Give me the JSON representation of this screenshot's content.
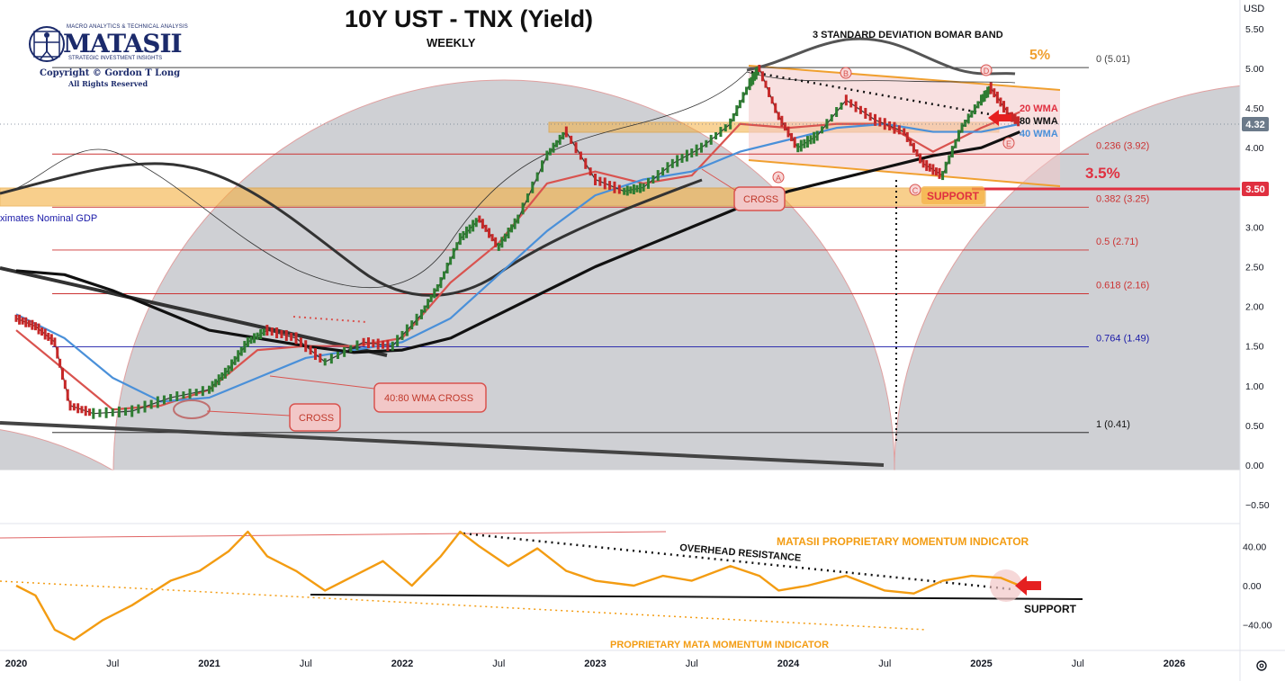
{
  "header": {
    "title": "10Y UST - TNX (Yield)",
    "subtitle": "WEEKLY",
    "currency_label": "USD"
  },
  "logo": {
    "top_line": "MACRO ANALYTICS & TECHNICAL ANALYSIS",
    "name": "MATASII",
    "tagline": "STRATEGIC INVESTMENT INSIGHTS",
    "copyright": "Copyright © Gordon T Long",
    "rights": "All Rights Reserved"
  },
  "chart_data": [
    {
      "type": "line",
      "name": "price-panel",
      "x_ticks": [
        "2020",
        "Jul",
        "2021",
        "Jul",
        "2022",
        "Jul",
        "2023",
        "Jul",
        "2024",
        "Jul",
        "2025",
        "Jul",
        "2026"
      ],
      "ylim": [
        -0.7,
        5.7
      ],
      "y_ticks": [
        -0.5,
        0,
        0.5,
        1,
        1.5,
        2,
        2.5,
        3,
        3.5,
        4,
        4.5,
        5,
        5.5
      ],
      "price_labels": {
        "last": "4.32",
        "level": "3.50"
      },
      "fib_levels": [
        {
          "label": "0 (5.01)",
          "value": 5.01,
          "color": "#444444"
        },
        {
          "label": "0.236 (3.92)",
          "value": 3.92,
          "color": "#cc3333"
        },
        {
          "label": "0.382 (3.25)",
          "value": 3.25,
          "color": "#cc3333"
        },
        {
          "label": "0.5 (2.71)",
          "value": 2.71,
          "color": "#cc3333"
        },
        {
          "label": "0.618 (2.16)",
          "value": 2.16,
          "color": "#cc3333"
        },
        {
          "label": "0.764 (1.49)",
          "value": 1.49,
          "color": "#1a1aa8"
        },
        {
          "label": "1 (0.41)",
          "value": 0.41,
          "color": "#111111"
        }
      ],
      "series": [
        {
          "name": "20 WMA",
          "color": "#d9534f",
          "x": [
            2020.0,
            2020.25,
            2020.5,
            2020.75,
            2021.0,
            2021.25,
            2021.5,
            2021.75,
            2022.0,
            2022.25,
            2022.5,
            2022.75,
            2023.0,
            2023.25,
            2023.5,
            2023.75,
            2024.0,
            2024.25,
            2024.5,
            2024.75,
            2025.0,
            2025.2
          ],
          "y": [
            1.7,
            1.2,
            0.7,
            0.75,
            0.95,
            1.45,
            1.5,
            1.5,
            1.6,
            2.3,
            2.8,
            3.55,
            3.7,
            3.55,
            3.65,
            4.3,
            4.25,
            4.3,
            4.3,
            3.95,
            4.25,
            4.45
          ]
        },
        {
          "name": "40 WMA",
          "color": "#4a90d9",
          "x": [
            2020.0,
            2020.25,
            2020.5,
            2020.75,
            2021.0,
            2021.25,
            2021.5,
            2021.75,
            2022.0,
            2022.25,
            2022.5,
            2022.75,
            2023.0,
            2023.25,
            2023.5,
            2023.75,
            2024.0,
            2024.25,
            2024.5,
            2024.75,
            2025.0,
            2025.2
          ],
          "y": [
            1.9,
            1.6,
            1.1,
            0.8,
            0.85,
            1.1,
            1.35,
            1.45,
            1.55,
            1.85,
            2.4,
            2.95,
            3.4,
            3.6,
            3.7,
            3.95,
            4.1,
            4.25,
            4.3,
            4.2,
            4.2,
            4.3
          ]
        },
        {
          "name": "80 WMA",
          "color": "#111111",
          "x": [
            2020.0,
            2020.25,
            2020.5,
            2020.75,
            2021.0,
            2021.25,
            2021.5,
            2021.75,
            2022.0,
            2022.25,
            2022.5,
            2022.75,
            2023.0,
            2023.25,
            2023.5,
            2023.75,
            2024.0,
            2024.25,
            2024.5,
            2024.75,
            2025.0,
            2025.2
          ],
          "y": [
            2.45,
            2.4,
            2.2,
            1.95,
            1.7,
            1.6,
            1.5,
            1.42,
            1.45,
            1.6,
            1.9,
            2.2,
            2.5,
            2.75,
            3.0,
            3.25,
            3.45,
            3.6,
            3.75,
            3.9,
            4.0,
            4.2
          ]
        },
        {
          "name": "TNX",
          "color": "#333333",
          "x": [
            2020.0,
            2020.1,
            2020.2,
            2020.28,
            2020.4,
            2020.6,
            2020.8,
            2021.0,
            2021.1,
            2021.2,
            2021.3,
            2021.45,
            2021.6,
            2021.8,
            2021.95,
            2022.1,
            2022.2,
            2022.3,
            2022.4,
            2022.5,
            2022.6,
            2022.75,
            2022.85,
            2023.0,
            2023.15,
            2023.25,
            2023.4,
            2023.55,
            2023.7,
            2023.8,
            2023.85,
            2023.95,
            2024.05,
            2024.15,
            2024.3,
            2024.45,
            2024.6,
            2024.7,
            2024.8,
            2024.9,
            2025.0,
            2025.05,
            2025.15,
            2025.2
          ],
          "y": [
            1.85,
            1.75,
            1.55,
            0.75,
            0.65,
            0.68,
            0.85,
            0.95,
            1.2,
            1.55,
            1.7,
            1.6,
            1.3,
            1.55,
            1.5,
            1.9,
            2.3,
            2.85,
            3.1,
            2.75,
            3.1,
            3.9,
            4.2,
            3.6,
            3.45,
            3.5,
            3.8,
            4.0,
            4.3,
            4.8,
            5.0,
            4.4,
            4.0,
            4.15,
            4.6,
            4.35,
            4.2,
            3.8,
            3.65,
            4.25,
            4.6,
            4.75,
            4.4,
            4.32
          ]
        }
      ],
      "annotations": [
        "3 STANDARD DEVIATION BOMAR BAND",
        "5%",
        "3.5%",
        "20 WMA",
        "80 WMA",
        "40 WMA",
        "CROSS",
        "CROSS",
        "40:80 WMA CROSS",
        "SUPPORT",
        "ximates Nominal GDP",
        "A",
        "B",
        "C",
        "D",
        "E"
      ]
    },
    {
      "type": "line",
      "name": "momentum-panel",
      "ylim": [
        -60,
        60
      ],
      "y_ticks": [
        -40,
        0,
        40
      ],
      "y_tick_labels": [
        "−40.00",
        "0.00",
        "40.00"
      ],
      "series": [
        {
          "name": "MATASII PROPRIETARY MOMENTUM INDICATOR",
          "color": "#f39c12",
          "x": [
            2020.0,
            2020.1,
            2020.2,
            2020.3,
            2020.45,
            2020.6,
            2020.8,
            2020.95,
            2021.1,
            2021.2,
            2021.3,
            2021.45,
            2021.6,
            2021.75,
            2021.9,
            2022.05,
            2022.2,
            2022.3,
            2022.4,
            2022.55,
            2022.7,
            2022.85,
            2023.0,
            2023.2,
            2023.35,
            2023.5,
            2023.7,
            2023.85,
            2023.95,
            2024.1,
            2024.3,
            2024.5,
            2024.65,
            2024.8,
            2024.95,
            2025.1,
            2025.2
          ],
          "y": [
            0,
            -10,
            -45,
            -55,
            -35,
            -20,
            5,
            15,
            35,
            55,
            30,
            15,
            -5,
            10,
            25,
            0,
            30,
            55,
            40,
            20,
            38,
            15,
            5,
            0,
            10,
            5,
            20,
            10,
            -5,
            0,
            10,
            -5,
            -8,
            5,
            10,
            8,
            0
          ]
        }
      ],
      "annotations": [
        "MATASII PROPRIETARY MOMENTUM INDICATOR",
        "OVERHEAD RESISTANCE",
        "SUPPORT",
        "PROPRIETARY MATA MOMENTUM INDICATOR"
      ]
    }
  ]
}
